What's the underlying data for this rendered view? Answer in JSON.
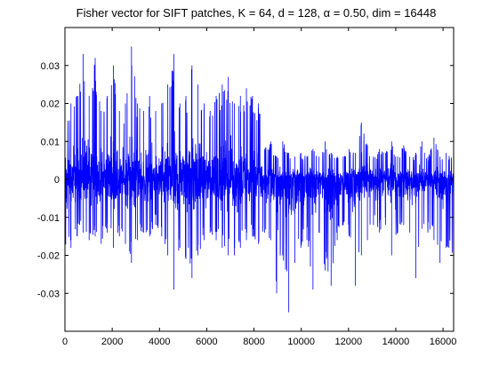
{
  "chart_data": {
    "type": "line",
    "title": "Fisher vector for SIFT patches, K = 64, d = 128, α = 0.50, dim = 16448",
    "xlabel": "",
    "ylabel": "",
    "xlim": [
      0,
      16448
    ],
    "ylim": [
      -0.04,
      0.04
    ],
    "x_ticks": [
      0,
      2000,
      4000,
      6000,
      8000,
      10000,
      12000,
      14000,
      16000
    ],
    "x_tick_labels": [
      "0",
      "2000",
      "4000",
      "6000",
      "8000",
      "10000",
      "12000",
      "14000",
      "16000"
    ],
    "y_ticks": [
      -0.03,
      -0.02,
      -0.01,
      0,
      0.01,
      0.02,
      0.03
    ],
    "y_tick_labels": [
      "-0.03",
      "-0.02",
      "-0.01",
      "0",
      "0.01",
      "0.02",
      "0.03"
    ],
    "grid": false,
    "legend": "none",
    "series": [
      {
        "color": "#0000ff",
        "n_points": 16448,
        "envelope_x": [
          0,
          256,
          512,
          768,
          1024,
          1280,
          1536,
          1792,
          2048,
          2304,
          2560,
          2816,
          3072,
          3328,
          3584,
          3840,
          4096,
          4352,
          4608,
          4864,
          5120,
          5376,
          5632,
          5888,
          6144,
          6400,
          6656,
          6912,
          7168,
          7424,
          7680,
          7936,
          8192,
          8448,
          8704,
          8960,
          9216,
          9472,
          9728,
          9984,
          10240,
          10496,
          10752,
          11008,
          11264,
          11520,
          11776,
          12032,
          12288,
          12544,
          12800,
          13056,
          13312,
          13568,
          13824,
          14080,
          14336,
          14592,
          14848,
          15104,
          15360,
          15616,
          15872,
          16128,
          16448
        ],
        "envelope_max": [
          0.015,
          0.02,
          0.022,
          0.033,
          0.022,
          0.032,
          0.018,
          0.022,
          0.03,
          0.018,
          0.02,
          0.035,
          0.02,
          0.018,
          0.022,
          0.018,
          0.02,
          0.025,
          0.033,
          0.02,
          0.022,
          0.03,
          0.025,
          0.02,
          0.018,
          0.022,
          0.025,
          0.027,
          0.02,
          0.022,
          0.024,
          0.022,
          0.02,
          0.008,
          0.01,
          0.006,
          0.01,
          0.007,
          0.006,
          0.007,
          0.006,
          0.008,
          0.006,
          0.01,
          0.007,
          0.006,
          0.006,
          0.008,
          0.007,
          0.015,
          0.009,
          0.006,
          0.008,
          0.007,
          0.01,
          0.006,
          0.009,
          0.006,
          0.007,
          0.01,
          0.006,
          0.011,
          0.006,
          0.007,
          0.006
        ],
        "envelope_min": [
          -0.02,
          -0.018,
          -0.015,
          -0.014,
          -0.016,
          -0.015,
          -0.017,
          -0.014,
          -0.018,
          -0.015,
          -0.017,
          -0.022,
          -0.016,
          -0.014,
          -0.015,
          -0.012,
          -0.015,
          -0.02,
          -0.029,
          -0.018,
          -0.021,
          -0.026,
          -0.02,
          -0.016,
          -0.014,
          -0.016,
          -0.018,
          -0.02,
          -0.02,
          -0.018,
          -0.016,
          -0.015,
          -0.017,
          -0.014,
          -0.016,
          -0.03,
          -0.02,
          -0.035,
          -0.022,
          -0.018,
          -0.016,
          -0.029,
          -0.014,
          -0.024,
          -0.028,
          -0.016,
          -0.012,
          -0.015,
          -0.028,
          -0.02,
          -0.016,
          -0.012,
          -0.014,
          -0.012,
          -0.02,
          -0.014,
          -0.012,
          -0.014,
          -0.026,
          -0.013,
          -0.014,
          -0.016,
          -0.022,
          -0.018,
          -0.02
        ]
      }
    ]
  }
}
